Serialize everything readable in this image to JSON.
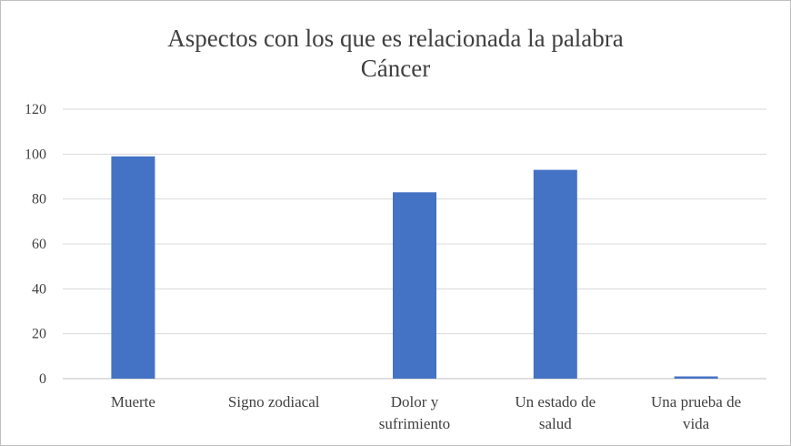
{
  "chart_data": {
    "type": "bar",
    "title": [
      "Aspectos  con  los  que  es  relacionada  la  palabra",
      "Cáncer"
    ],
    "categories": [
      [
        "Muerte"
      ],
      [
        "Signo zodiacal"
      ],
      [
        "Dolor y",
        "sufrimiento"
      ],
      [
        "Un estado de",
        "salud"
      ],
      [
        "Una prueba de",
        "vida"
      ]
    ],
    "values": [
      99,
      0,
      83,
      93,
      1
    ],
    "ylim": [
      0,
      120
    ],
    "yticks": [
      0,
      20,
      40,
      60,
      80,
      100,
      120
    ],
    "grid": true,
    "legend": "none",
    "bar_color": "#4472c4"
  }
}
